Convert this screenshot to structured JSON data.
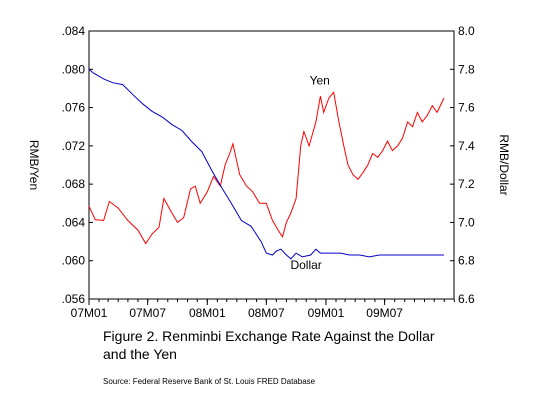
{
  "chart_data": {
    "type": "line",
    "caption_line1": "Figure 2.  Renminbi Exchange Rate Against the Dollar",
    "caption_line2": "and the Yen",
    "source": "Source: Federal Reserve Bank of St. Louis FRED Database",
    "ylabel_left": "RMB/Yen",
    "ylabel_right": "RMB/Dollar",
    "ylim_left": [
      0.056,
      0.084
    ],
    "ylim_right": [
      6.6,
      8.0
    ],
    "yticks_left": [
      ".056",
      ".060",
      ".064",
      ".068",
      ".072",
      ".076",
      ".080",
      ".084"
    ],
    "yticks_right": [
      "6.6",
      "6.8",
      "7.0",
      "7.2",
      "7.4",
      "7.6",
      "7.8",
      "8.0"
    ],
    "xlim": [
      "2007-01-01",
      "2010-01-31"
    ],
    "xticks": [
      {
        "date": "2007-01-01",
        "label": "07M01"
      },
      {
        "date": "2007-07-01",
        "label": "07M07"
      },
      {
        "date": "2008-01-01",
        "label": "08M01"
      },
      {
        "date": "2008-07-01",
        "label": "08M07"
      },
      {
        "date": "2009-01-01",
        "label": "09M01"
      },
      {
        "date": "2009-07-01",
        "label": "09M07"
      }
    ],
    "grid": false,
    "colors": {
      "yen": "#ff0000",
      "dollar": "#0000cc"
    },
    "series": [
      {
        "name": "Yen",
        "axis": "left",
        "label": "Yen",
        "points": [
          [
            "2007-01-01",
            0.0657
          ],
          [
            "2007-01-20",
            0.0643
          ],
          [
            "2007-02-15",
            0.0642
          ],
          [
            "2007-03-05",
            0.0662
          ],
          [
            "2007-04-01",
            0.0655
          ],
          [
            "2007-05-01",
            0.0642
          ],
          [
            "2007-06-01",
            0.0632
          ],
          [
            "2007-06-25",
            0.0618
          ],
          [
            "2007-07-15",
            0.0628
          ],
          [
            "2007-08-05",
            0.0635
          ],
          [
            "2007-08-20",
            0.0665
          ],
          [
            "2007-09-10",
            0.0652
          ],
          [
            "2007-10-01",
            0.064
          ],
          [
            "2007-10-20",
            0.0645
          ],
          [
            "2007-11-10",
            0.0675
          ],
          [
            "2007-11-25",
            0.0678
          ],
          [
            "2007-12-10",
            0.066
          ],
          [
            "2008-01-01",
            0.0672
          ],
          [
            "2008-01-20",
            0.0688
          ],
          [
            "2008-02-10",
            0.0678
          ],
          [
            "2008-02-25",
            0.07
          ],
          [
            "2008-03-10",
            0.0712
          ],
          [
            "2008-03-20",
            0.0722
          ],
          [
            "2008-04-10",
            0.069
          ],
          [
            "2008-05-01",
            0.0678
          ],
          [
            "2008-05-20",
            0.0672
          ],
          [
            "2008-06-10",
            0.066
          ],
          [
            "2008-07-01",
            0.066
          ],
          [
            "2008-07-20",
            0.0642
          ],
          [
            "2008-08-10",
            0.063
          ],
          [
            "2008-08-20",
            0.0625
          ],
          [
            "2008-09-01",
            0.064
          ],
          [
            "2008-09-15",
            0.065
          ],
          [
            "2008-10-01",
            0.0665
          ],
          [
            "2008-10-15",
            0.072
          ],
          [
            "2008-10-25",
            0.0735
          ],
          [
            "2008-11-10",
            0.072
          ],
          [
            "2008-12-01",
            0.0745
          ],
          [
            "2008-12-15",
            0.0772
          ],
          [
            "2008-12-25",
            0.0755
          ],
          [
            "2009-01-10",
            0.077
          ],
          [
            "2009-01-25",
            0.0776
          ],
          [
            "2009-02-10",
            0.0745
          ],
          [
            "2009-02-25",
            0.072
          ],
          [
            "2009-03-10",
            0.07
          ],
          [
            "2009-03-25",
            0.069
          ],
          [
            "2009-04-10",
            0.0685
          ],
          [
            "2009-04-25",
            0.0692
          ],
          [
            "2009-05-10",
            0.07
          ],
          [
            "2009-05-25",
            0.0712
          ],
          [
            "2009-06-10",
            0.0708
          ],
          [
            "2009-06-25",
            0.0715
          ],
          [
            "2009-07-10",
            0.0725
          ],
          [
            "2009-07-25",
            0.0715
          ],
          [
            "2009-08-10",
            0.072
          ],
          [
            "2009-08-25",
            0.0728
          ],
          [
            "2009-09-10",
            0.0745
          ],
          [
            "2009-09-25",
            0.074
          ],
          [
            "2009-10-10",
            0.0755
          ],
          [
            "2009-10-25",
            0.0745
          ],
          [
            "2009-11-10",
            0.0752
          ],
          [
            "2009-11-25",
            0.0762
          ],
          [
            "2009-12-10",
            0.0755
          ],
          [
            "2009-12-31",
            0.077
          ]
        ]
      },
      {
        "name": "Dollar",
        "axis": "right",
        "label": "Dollar",
        "points": [
          [
            "2007-01-01",
            7.8
          ],
          [
            "2007-01-15",
            7.78
          ],
          [
            "2007-02-15",
            7.75
          ],
          [
            "2007-03-15",
            7.73
          ],
          [
            "2007-04-15",
            7.72
          ],
          [
            "2007-05-15",
            7.67
          ],
          [
            "2007-06-15",
            7.62
          ],
          [
            "2007-07-15",
            7.58
          ],
          [
            "2007-08-15",
            7.55
          ],
          [
            "2007-09-15",
            7.51
          ],
          [
            "2007-10-15",
            7.48
          ],
          [
            "2007-11-15",
            7.42
          ],
          [
            "2007-12-15",
            7.37
          ],
          [
            "2008-01-15",
            7.27
          ],
          [
            "2008-02-15",
            7.18
          ],
          [
            "2008-03-15",
            7.1
          ],
          [
            "2008-04-15",
            7.01
          ],
          [
            "2008-05-15",
            6.98
          ],
          [
            "2008-06-15",
            6.9
          ],
          [
            "2008-07-01",
            6.84
          ],
          [
            "2008-07-20",
            6.83
          ],
          [
            "2008-08-01",
            6.85
          ],
          [
            "2008-08-15",
            6.86
          ],
          [
            "2008-09-01",
            6.83
          ],
          [
            "2008-09-15",
            6.81
          ],
          [
            "2008-10-01",
            6.84
          ],
          [
            "2008-10-20",
            6.82
          ],
          [
            "2008-11-15",
            6.83
          ],
          [
            "2008-12-01",
            6.86
          ],
          [
            "2008-12-15",
            6.84
          ],
          [
            "2009-01-15",
            6.84
          ],
          [
            "2009-02-15",
            6.84
          ],
          [
            "2009-03-15",
            6.83
          ],
          [
            "2009-04-15",
            6.83
          ],
          [
            "2009-05-15",
            6.82
          ],
          [
            "2009-06-15",
            6.83
          ],
          [
            "2009-07-15",
            6.83
          ],
          [
            "2009-08-15",
            6.83
          ],
          [
            "2009-09-15",
            6.83
          ],
          [
            "2009-10-15",
            6.83
          ],
          [
            "2009-11-15",
            6.83
          ],
          [
            "2009-12-31",
            6.83
          ]
        ]
      }
    ]
  }
}
